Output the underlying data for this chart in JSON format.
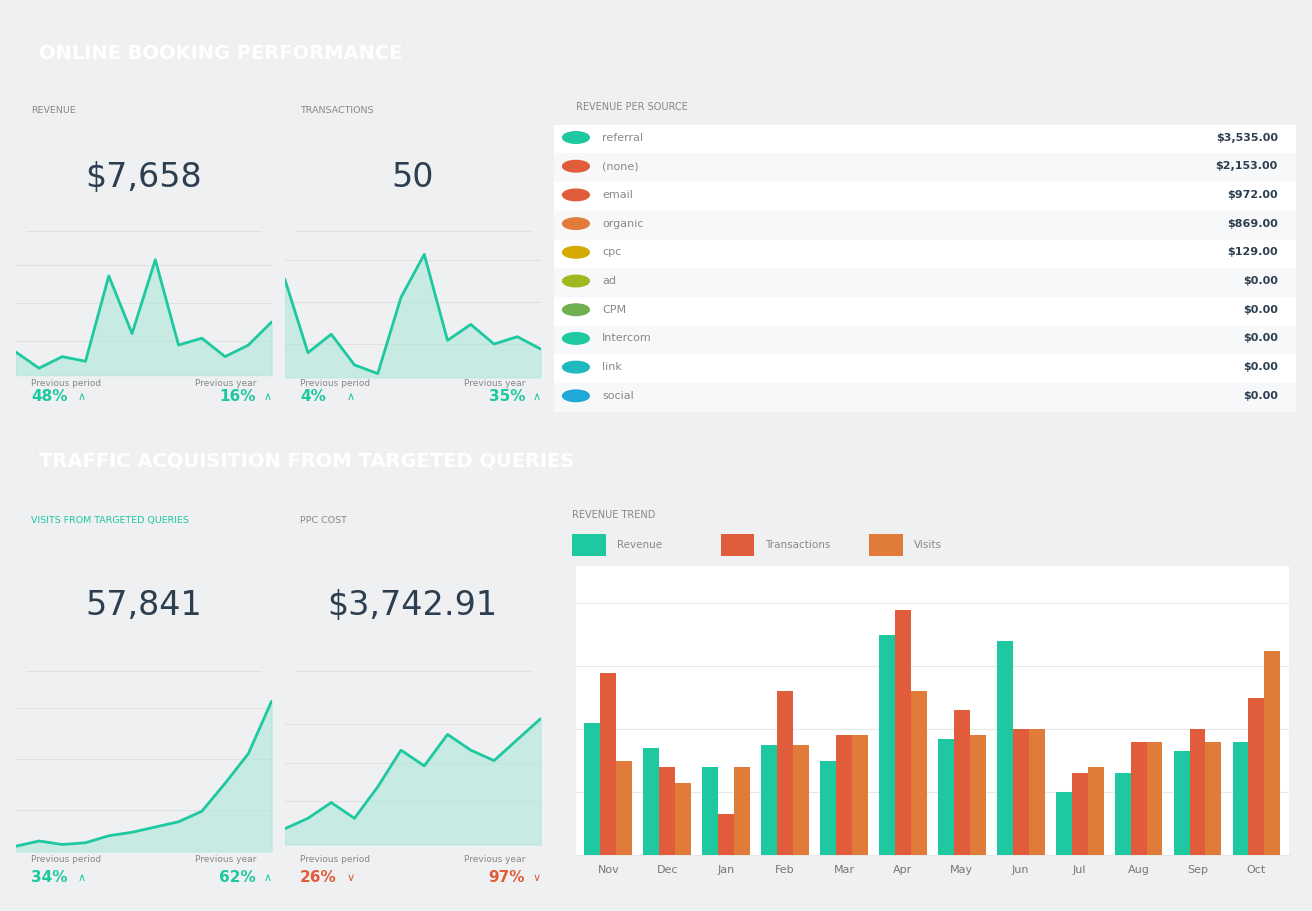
{
  "title1": "ONLINE BOOKING PERFORMANCE",
  "title2": "TRAFFIC ACQUISITION FROM TARGETED QUERIES",
  "header_bg": "#2d3e50",
  "header_text": "#ffffff",
  "panel_bg": "#ffffff",
  "outer_bg": "#eef0f2",
  "teal": "#1ec8a0",
  "teal_fill": "#a8e8d8",
  "red": "#e05c3a",
  "orange": "#e07b3a",
  "label_color": "#888888",
  "label_teal_color": "#1ec8a0",
  "value_color": "#2d3e50",
  "pct_color_up": "#1ec8a0",
  "pct_color_down": "#e05c3a",
  "revenue_value": "$7,658",
  "transactions_value": "50",
  "visits_value": "57,841",
  "ppc_value": "$3,742.91",
  "revenue_prev_period": "48%",
  "revenue_prev_year": "16%",
  "trans_prev_period": "4%",
  "trans_prev_year": "35%",
  "visits_prev_period": "34%",
  "visits_prev_year": "62%",
  "ppc_prev_period": "26%",
  "ppc_prev_year": "97%",
  "revenue_up": [
    true,
    true
  ],
  "trans_up": [
    true,
    true
  ],
  "visits_up": [
    true,
    true
  ],
  "ppc_up": [
    false,
    false
  ],
  "revenue_sparkline": [
    5.2,
    4.5,
    5.0,
    4.8,
    8.5,
    6.0,
    9.2,
    5.5,
    5.8,
    5.0,
    5.5,
    6.5
  ],
  "trans_sparkline": [
    8.5,
    2.5,
    4.0,
    1.5,
    0.8,
    7.0,
    10.5,
    3.5,
    4.8,
    3.2,
    3.8,
    2.8
  ],
  "visits_sparkline": [
    2.2,
    2.5,
    2.3,
    2.4,
    2.8,
    3.0,
    3.3,
    3.6,
    4.2,
    5.8,
    7.5,
    10.5
  ],
  "ppc_sparkline": [
    3.8,
    4.0,
    4.3,
    4.0,
    4.6,
    5.3,
    5.0,
    5.6,
    5.3,
    5.1,
    5.5,
    5.9
  ],
  "sources": [
    "referral",
    "(none)",
    "email",
    "organic",
    "cpc",
    "ad",
    "CPM",
    "Intercom",
    "link",
    "social"
  ],
  "source_values": [
    "$3,535.00",
    "$2,153.00",
    "$972.00",
    "$869.00",
    "$129.00",
    "$0.00",
    "$0.00",
    "$0.00",
    "$0.00",
    "$0.00"
  ],
  "source_colors": [
    "#1ec8a0",
    "#e05c3a",
    "#e05c3a",
    "#e07b3a",
    "#d4aa00",
    "#a0b820",
    "#6eb050",
    "#1ec8a0",
    "#20b8c0",
    "#20a8d8"
  ],
  "bar_months": [
    "Nov",
    "Dec",
    "Jan",
    "Feb",
    "Mar",
    "Apr",
    "May",
    "Jun",
    "Jul",
    "Aug",
    "Sep",
    "Oct"
  ],
  "bar_revenue": [
    42,
    34,
    28,
    35,
    30,
    70,
    37,
    68,
    20,
    26,
    33,
    36
  ],
  "bar_transactions": [
    58,
    28,
    13,
    52,
    38,
    78,
    46,
    40,
    26,
    36,
    40,
    50
  ],
  "bar_visits": [
    30,
    23,
    28,
    35,
    38,
    52,
    38,
    40,
    28,
    36,
    36,
    65
  ],
  "bar_revenue_color": "#1ec8a0",
  "bar_trans_color": "#e05c3a",
  "bar_visits_color": "#e07b3a",
  "grid_color": "#e8e8e8",
  "row_alt_color": "#f7f8f9"
}
